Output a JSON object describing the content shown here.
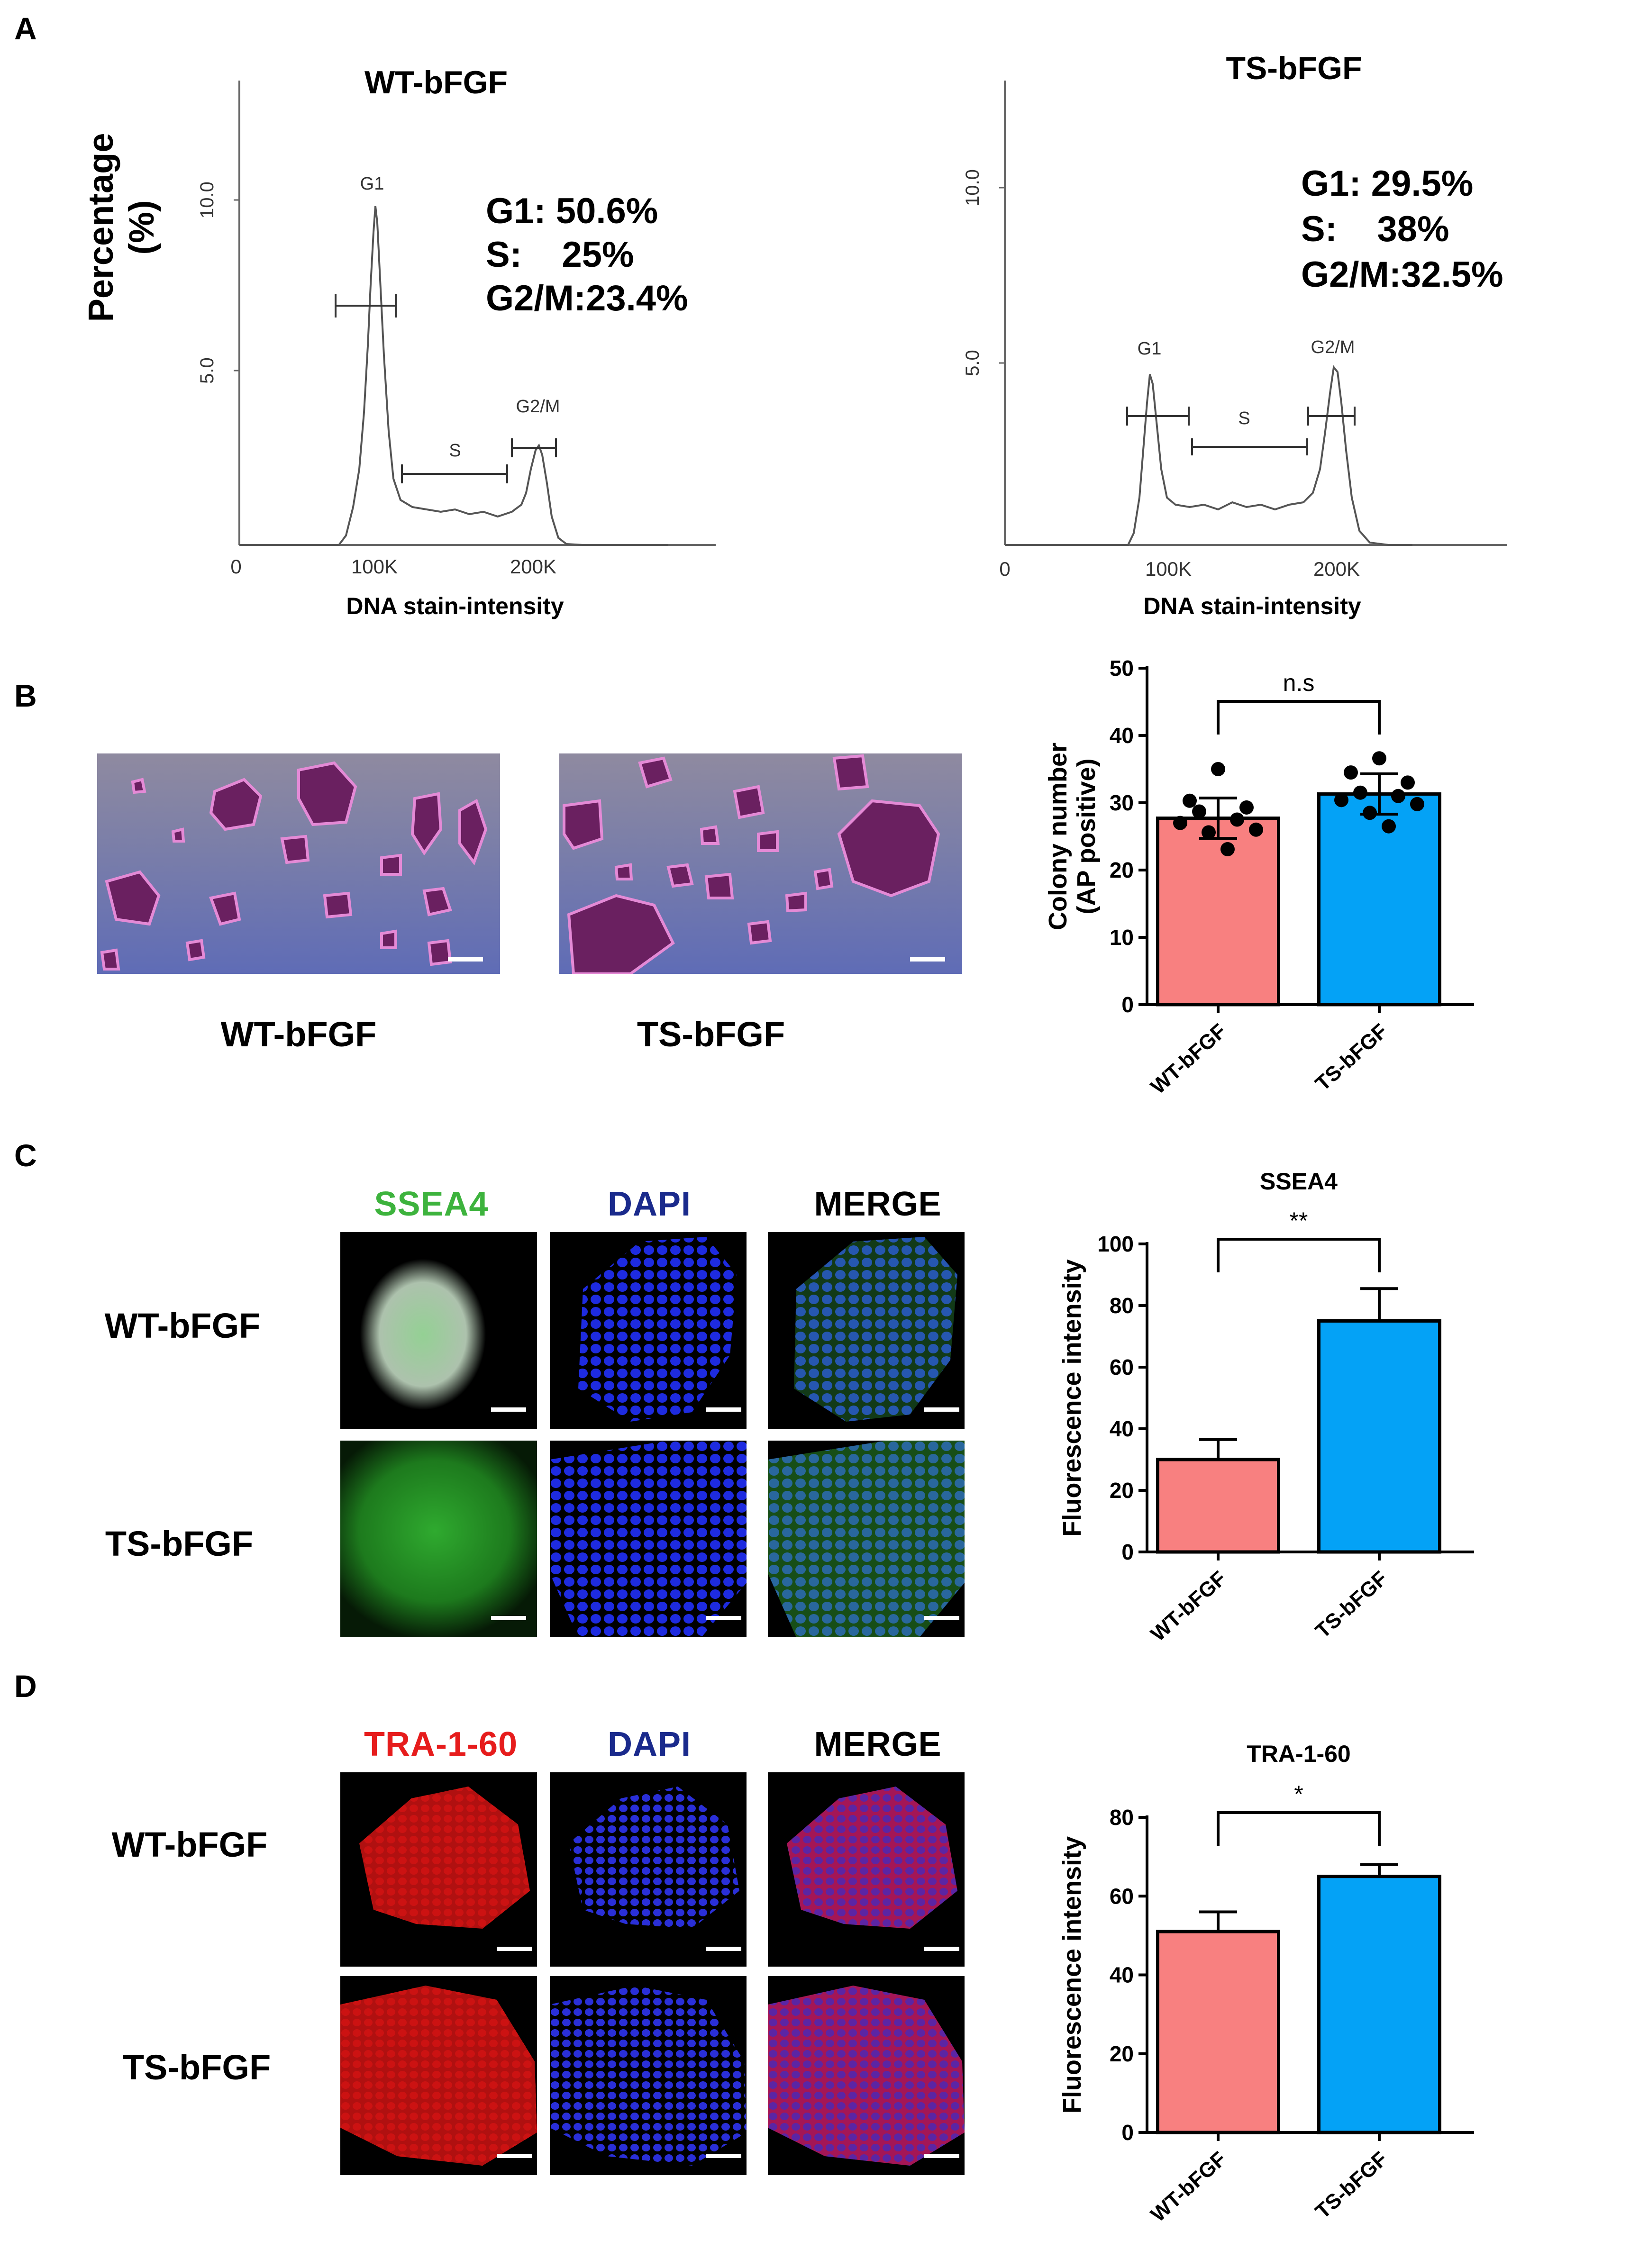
{
  "panels": {
    "a": {
      "letter": "A",
      "ylabel": "Percentage",
      "ylabel2": "(%)",
      "histograms": [
        {
          "title": "WT-bFGF",
          "xlabel": "DNA stain-intensity",
          "x_ticks": [
            "0",
            "100K",
            "200K"
          ],
          "y_ticks": [
            "5.0",
            "10.0"
          ],
          "gate_labels": {
            "g1": "G1",
            "s": "S",
            "g2m": "G2/M"
          },
          "stats": [
            {
              "label": "G1:",
              "value": "50.6%"
            },
            {
              "label": "S:",
              "value": "25%"
            },
            {
              "label": "G2/M:",
              "value": "23.4%"
            }
          ],
          "stats_text": [
            "G1: 50.6%",
            "S:    25%",
            "G2/M:23.4%"
          ]
        },
        {
          "title": "TS-bFGF",
          "xlabel": "DNA stain-intensity",
          "x_ticks": [
            "0",
            "100K",
            "200K"
          ],
          "y_ticks": [
            "5.0",
            "10.0"
          ],
          "gate_labels": {
            "g1": "G1",
            "s": "S",
            "g2m": "G2/M"
          },
          "stats": [
            {
              "label": "G1:",
              "value": "29.5%"
            },
            {
              "label": "S:",
              "value": "38%"
            },
            {
              "label": "G2/M:",
              "value": "32.5%"
            }
          ],
          "stats_text": [
            "G1: 29.5%",
            "S:    38%",
            "G2/M:32.5%"
          ]
        }
      ]
    },
    "b": {
      "letter": "B",
      "image_labels": [
        "WT-bFGF",
        "TS-bFGF"
      ]
    },
    "c": {
      "letter": "C",
      "channels": [
        "SSEA4",
        "DAPI",
        "MERGE"
      ],
      "rows": [
        "WT-bFGF",
        "TS-bFGF"
      ]
    },
    "d": {
      "letter": "D",
      "channels": [
        "TRA-1-60",
        "DAPI",
        "MERGE"
      ],
      "rows": [
        "WT-bFGF",
        "TS-bFGF"
      ]
    }
  },
  "colors": {
    "wt_bar": "#f88080",
    "ts_bar": "#04a2f6",
    "ssea4": "#3db33d",
    "dapi": "#1a2a8c",
    "tra": "#e61c1c"
  },
  "chart_data": [
    {
      "type": "histogram",
      "title": "WT-bFGF",
      "xlabel": "DNA stain-intensity",
      "ylabel": "Percentage (%)",
      "xlim": [
        0,
        300000
      ],
      "ylim": [
        0,
        12.5
      ],
      "peaks": [
        {
          "name": "G1",
          "x": 95000,
          "y": 9.8
        },
        {
          "name": "G2/M",
          "x": 190000,
          "y": 3.3
        }
      ],
      "gates": {
        "G1": "50.6%",
        "S": "25%",
        "G2/M": "23.4%"
      }
    },
    {
      "type": "histogram",
      "title": "TS-bFGF",
      "xlabel": "DNA stain-intensity",
      "ylabel": "Percentage (%)",
      "xlim": [
        0,
        300000
      ],
      "ylim": [
        0,
        12.5
      ],
      "peaks": [
        {
          "name": "G1",
          "x": 95000,
          "y": 4.8
        },
        {
          "name": "G2/M",
          "x": 190000,
          "y": 5.0
        }
      ],
      "gates": {
        "G1": "29.5%",
        "S": "38%",
        "G2/M": "32.5%"
      }
    },
    {
      "type": "bar",
      "title": "",
      "ylabel": "Colony number (AP positive)",
      "categories": [
        "WT-bFGF",
        "TS-bFGF"
      ],
      "values": [
        27.7,
        31.3
      ],
      "errors": [
        3.0,
        3.0
      ],
      "ylim": [
        0,
        50
      ],
      "yticks": [
        0,
        10,
        20,
        30,
        40,
        50
      ],
      "significance": "n.s",
      "points": [
        [
          35.0,
          30.3,
          29.3,
          28.7,
          27.5,
          27.0,
          26.0,
          25.6,
          23.1
        ],
        [
          36.6,
          34.5,
          33.0,
          31.5,
          31.0,
          30.4,
          29.8,
          28.5,
          26.5
        ]
      ]
    },
    {
      "type": "bar",
      "title": "SSEA4",
      "ylabel": "Fluorescence intensity",
      "categories": [
        "WT-bFGF",
        "TS-bFGF"
      ],
      "values": [
        30,
        75
      ],
      "errors": [
        6.5,
        10.5
      ],
      "ylim": [
        0,
        100
      ],
      "yticks": [
        0,
        20,
        40,
        60,
        80,
        100
      ],
      "significance": "**"
    },
    {
      "type": "bar",
      "title": "TRA-1-60",
      "ylabel": "Fluorescence intensity",
      "categories": [
        "WT-bFGF",
        "TS-bFGF"
      ],
      "values": [
        51,
        65
      ],
      "errors": [
        5,
        3
      ],
      "ylim": [
        0,
        80
      ],
      "yticks": [
        0,
        20,
        40,
        60,
        80
      ],
      "significance": "*"
    }
  ]
}
